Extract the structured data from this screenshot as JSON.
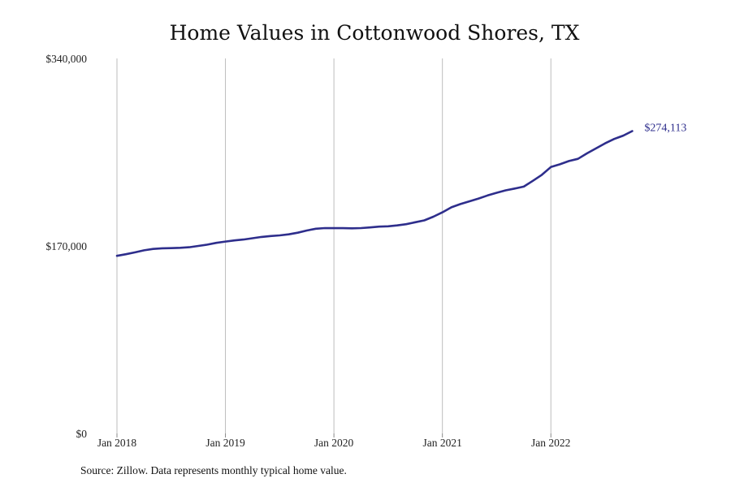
{
  "chart_data": {
    "type": "line",
    "title": "Home Values in Cottonwood Shores, TX",
    "xlabel": "",
    "ylabel": "",
    "x_tick_labels": [
      "Jan 2018",
      "Jan 2019",
      "Jan 2020",
      "Jan 2021",
      "Jan 2022"
    ],
    "y_tick_labels": [
      "$0",
      "$170,000",
      "$340,000"
    ],
    "y_ticks": [
      0,
      170000,
      340000
    ],
    "ylim": [
      0,
      340000
    ],
    "xlim": [
      "2018-01",
      "2022-10"
    ],
    "grid": "vertical lines at January ticks",
    "series": [
      {
        "color": "#2e2e8c",
        "x": [
          "2018-01",
          "2018-02",
          "2018-03",
          "2018-04",
          "2018-05",
          "2018-06",
          "2018-07",
          "2018-08",
          "2018-09",
          "2018-10",
          "2018-11",
          "2018-12",
          "2019-01",
          "2019-02",
          "2019-03",
          "2019-04",
          "2019-05",
          "2019-06",
          "2019-07",
          "2019-08",
          "2019-09",
          "2019-10",
          "2019-11",
          "2019-12",
          "2020-01",
          "2020-02",
          "2020-03",
          "2020-04",
          "2020-05",
          "2020-06",
          "2020-07",
          "2020-08",
          "2020-09",
          "2020-10",
          "2020-11",
          "2020-12",
          "2021-01",
          "2021-02",
          "2021-03",
          "2021-04",
          "2021-05",
          "2021-06",
          "2021-07",
          "2021-08",
          "2021-09",
          "2021-10",
          "2021-11",
          "2021-12",
          "2022-01",
          "2022-02",
          "2022-03",
          "2022-04",
          "2022-05",
          "2022-06",
          "2022-07",
          "2022-08",
          "2022-09",
          "2022-10"
        ],
        "values": [
          161000,
          162500,
          164200,
          166000,
          167300,
          167900,
          168000,
          168300,
          168800,
          170000,
          171200,
          172800,
          174000,
          175000,
          175800,
          177000,
          178200,
          179000,
          179600,
          180500,
          182000,
          184000,
          185600,
          186200,
          186100,
          186100,
          186000,
          186200,
          186800,
          187500,
          187800,
          188600,
          189700,
          191500,
          193200,
          196500,
          200500,
          205000,
          208000,
          210500,
          213000,
          215800,
          218200,
          220400,
          222000,
          223800,
          229000,
          234500,
          241500,
          244000,
          247000,
          249000,
          254000,
          258500,
          263000,
          267000,
          270000,
          274113
        ]
      }
    ],
    "annotations": [
      "$274,113"
    ]
  },
  "source_note": "Source: Zillow. Data represents monthly typical home value."
}
